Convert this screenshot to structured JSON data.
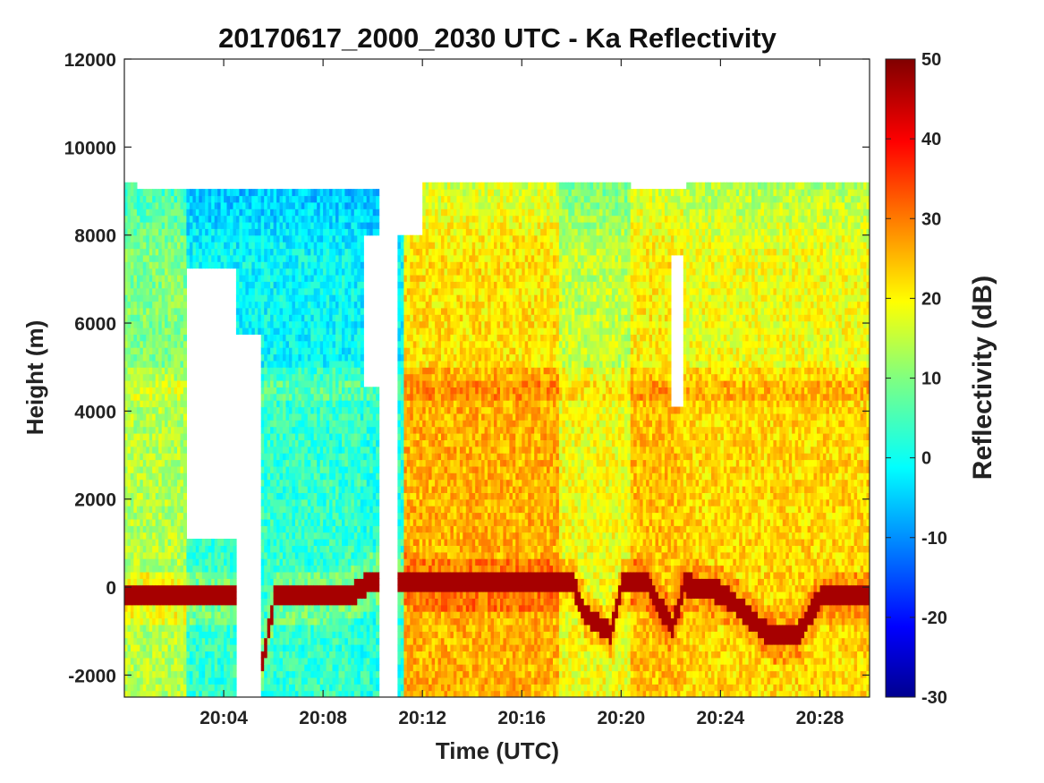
{
  "chart_data": {
    "type": "heatmap",
    "title": "20170617_2000_2030 UTC - Ka Reflectivity",
    "xlabel": "Time (UTC)",
    "ylabel": "Height (m)",
    "colorbar_label": "Reflectivity (dB)",
    "x_ticks": [
      "20:04",
      "20:08",
      "20:12",
      "20:16",
      "20:20",
      "20:24",
      "20:28"
    ],
    "x_tick_minutes": [
      4,
      8,
      12,
      16,
      20,
      24,
      28
    ],
    "xlim_minutes": [
      0,
      30
    ],
    "y_ticks": [
      12000,
      10000,
      8000,
      6000,
      4000,
      2000,
      0,
      -2000
    ],
    "ylim": [
      -2500,
      12000
    ],
    "colorbar_ticks": [
      50,
      40,
      30,
      20,
      10,
      0,
      -10,
      -20,
      -30
    ],
    "clim": [
      -30,
      50
    ],
    "colormap": "jet",
    "echo_top_m": 9000,
    "melting_layer_m": 4500,
    "surface_echo": [
      {
        "t": 0,
        "h": -300
      },
      {
        "t": 4.5,
        "h": -300
      },
      {
        "t": 5.5,
        "h": -1800
      },
      {
        "t": 6,
        "h": -300
      },
      {
        "t": 9,
        "h": -250
      },
      {
        "t": 10,
        "h": 100
      },
      {
        "t": 11.5,
        "h": 50
      },
      {
        "t": 18,
        "h": 0
      },
      {
        "t": 18.5,
        "h": -700
      },
      {
        "t": 19.5,
        "h": -1100
      },
      {
        "t": 20,
        "h": 0
      },
      {
        "t": 21,
        "h": 0
      },
      {
        "t": 22,
        "h": -1000
      },
      {
        "t": 22.5,
        "h": 0
      },
      {
        "t": 24,
        "h": -200
      },
      {
        "t": 26,
        "h": -1200
      },
      {
        "t": 27,
        "h": -1200
      },
      {
        "t": 28,
        "h": -250
      },
      {
        "t": 30,
        "h": -300
      }
    ],
    "gaps": [
      {
        "t0": 2.5,
        "t1": 4.5,
        "h0": 1000,
        "h1": 7200
      },
      {
        "t0": 4.5,
        "t1": 5.5,
        "h0": -2500,
        "h1": 5700
      },
      {
        "t0": 9.6,
        "t1": 10.2,
        "h0": 4500,
        "h1": 8000
      },
      {
        "t0": 10.2,
        "t1": 11.0,
        "h0": -2500,
        "h1": 9000
      },
      {
        "t0": 11.0,
        "t1": 12.0,
        "h0": 8000,
        "h1": 12000
      },
      {
        "t0": 20.3,
        "t1": 22.6,
        "h0": 9000,
        "h1": 12000
      },
      {
        "t0": 22.0,
        "t1": 22.4,
        "h0": 4000,
        "h1": 7500
      }
    ]
  }
}
